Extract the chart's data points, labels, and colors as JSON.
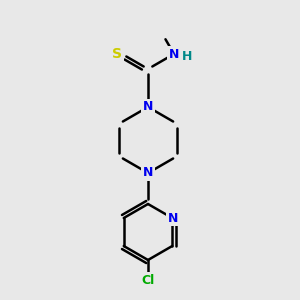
{
  "bg_color": "#e8e8e8",
  "bond_color": "#000000",
  "bond_width": 1.8,
  "S_color": "#cccc00",
  "N_color": "#0000ee",
  "Cl_color": "#00aa00",
  "H_color": "#008888",
  "figsize": [
    3.0,
    3.0
  ],
  "dpi": 100,
  "xlim": [
    0,
    300
  ],
  "ylim": [
    0,
    300
  ]
}
